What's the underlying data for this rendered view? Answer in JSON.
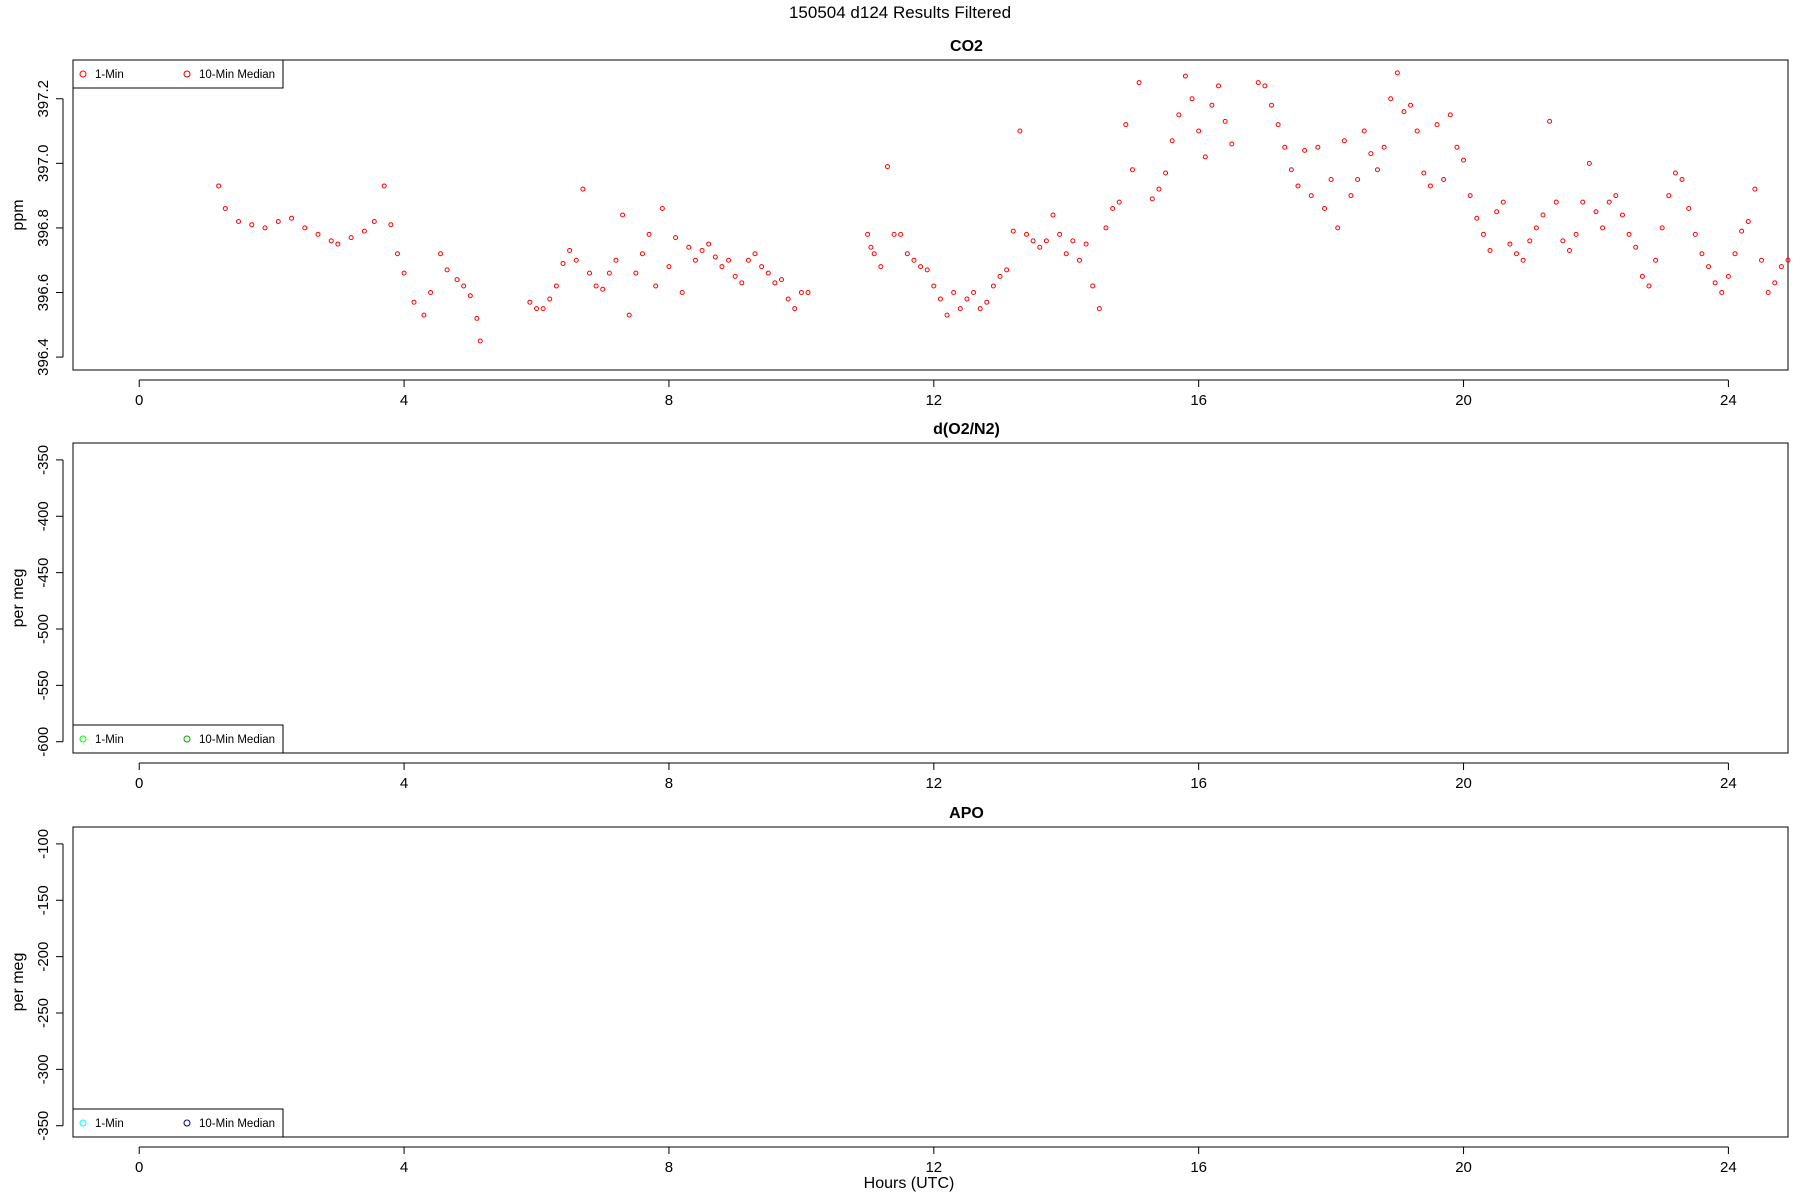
{
  "figure": {
    "title": "150504   d124   Results Filtered",
    "xlabel": "Hours (UTC)"
  },
  "chart_data": [
    {
      "type": "scatter",
      "title": "CO2",
      "xlabel": "",
      "ylabel": "ppm",
      "xlim": [
        -1.0,
        24.9
      ],
      "ylim": [
        396.36,
        397.32
      ],
      "xticks": [
        "0",
        "4",
        "8",
        "12",
        "16",
        "20",
        "24"
      ],
      "xtick_values": [
        0,
        4,
        8,
        12,
        16,
        20,
        24
      ],
      "yticks": [
        "396.4",
        "396.6",
        "396.8",
        "397.0",
        "397.2"
      ],
      "ytick_values": [
        396.4,
        396.6,
        396.8,
        397.0,
        397.2
      ],
      "legend_position": "top-left",
      "series": [
        {
          "name": "1-Min",
          "color": "#ff0000",
          "points": [
            [
              1.2,
              396.93
            ],
            [
              1.3,
              396.86
            ],
            [
              1.5,
              396.82
            ],
            [
              1.7,
              396.81
            ],
            [
              1.9,
              396.8
            ],
            [
              2.1,
              396.82
            ],
            [
              2.3,
              396.83
            ],
            [
              2.5,
              396.8
            ],
            [
              2.7,
              396.78
            ],
            [
              2.9,
              396.76
            ],
            [
              3.0,
              396.75
            ],
            [
              3.2,
              396.77
            ],
            [
              3.4,
              396.79
            ],
            [
              3.55,
              396.82
            ],
            [
              3.7,
              396.93
            ],
            [
              3.8,
              396.81
            ],
            [
              3.9,
              396.72
            ],
            [
              4.0,
              396.66
            ],
            [
              4.15,
              396.57
            ],
            [
              4.3,
              396.53
            ],
            [
              4.4,
              396.6
            ],
            [
              4.55,
              396.72
            ],
            [
              4.65,
              396.67
            ],
            [
              4.8,
              396.64
            ],
            [
              4.9,
              396.62
            ],
            [
              5.0,
              396.59
            ],
            [
              5.1,
              396.52
            ],
            [
              5.15,
              396.45
            ],
            [
              5.9,
              396.57
            ],
            [
              6.0,
              396.55
            ],
            [
              6.1,
              396.55
            ],
            [
              6.2,
              396.58
            ],
            [
              6.3,
              396.62
            ],
            [
              6.4,
              396.69
            ],
            [
              6.5,
              396.73
            ],
            [
              6.6,
              396.7
            ],
            [
              6.7,
              396.92
            ],
            [
              6.8,
              396.66
            ],
            [
              6.9,
              396.62
            ],
            [
              7.0,
              396.61
            ],
            [
              7.1,
              396.66
            ],
            [
              7.2,
              396.7
            ],
            [
              7.3,
              396.84
            ],
            [
              7.4,
              396.53
            ],
            [
              7.5,
              396.66
            ],
            [
              7.6,
              396.72
            ],
            [
              7.7,
              396.78
            ],
            [
              7.8,
              396.62
            ],
            [
              7.9,
              396.86
            ],
            [
              8.0,
              396.68
            ],
            [
              8.1,
              396.77
            ],
            [
              8.2,
              396.6
            ],
            [
              8.3,
              396.74
            ],
            [
              8.4,
              396.7
            ],
            [
              8.5,
              396.73
            ],
            [
              8.6,
              396.75
            ],
            [
              8.7,
              396.71
            ],
            [
              8.8,
              396.68
            ],
            [
              8.9,
              396.7
            ],
            [
              9.0,
              396.65
            ],
            [
              9.1,
              396.63
            ],
            [
              9.2,
              396.7
            ],
            [
              9.3,
              396.72
            ],
            [
              9.4,
              396.68
            ],
            [
              9.5,
              396.66
            ],
            [
              9.6,
              396.63
            ],
            [
              9.7,
              396.64
            ],
            [
              9.8,
              396.58
            ],
            [
              9.9,
              396.55
            ],
            [
              10.0,
              396.6
            ],
            [
              10.1,
              396.6
            ],
            [
              11.0,
              396.78
            ],
            [
              11.05,
              396.74
            ],
            [
              11.1,
              396.72
            ],
            [
              11.2,
              396.68
            ],
            [
              11.3,
              396.99
            ],
            [
              11.4,
              396.78
            ],
            [
              11.5,
              396.78
            ],
            [
              11.6,
              396.72
            ],
            [
              11.7,
              396.7
            ],
            [
              11.8,
              396.68
            ],
            [
              11.9,
              396.67
            ],
            [
              12.0,
              396.62
            ],
            [
              12.1,
              396.58
            ],
            [
              12.2,
              396.53
            ],
            [
              12.3,
              396.6
            ],
            [
              12.4,
              396.55
            ],
            [
              12.5,
              396.58
            ],
            [
              12.6,
              396.6
            ],
            [
              12.7,
              396.55
            ],
            [
              12.8,
              396.57
            ],
            [
              12.9,
              396.62
            ],
            [
              13.0,
              396.65
            ],
            [
              13.1,
              396.67
            ],
            [
              13.2,
              396.79
            ],
            [
              13.3,
              397.1
            ],
            [
              13.4,
              396.78
            ],
            [
              13.5,
              396.76
            ],
            [
              13.6,
              396.74
            ],
            [
              13.7,
              396.76
            ],
            [
              13.8,
              396.84
            ],
            [
              13.9,
              396.78
            ],
            [
              14.0,
              396.72
            ],
            [
              14.1,
              396.76
            ],
            [
              14.2,
              396.7
            ],
            [
              14.3,
              396.75
            ],
            [
              14.4,
              396.62
            ],
            [
              14.5,
              396.55
            ],
            [
              14.6,
              396.8
            ],
            [
              14.7,
              396.86
            ],
            [
              14.8,
              396.88
            ],
            [
              14.9,
              397.12
            ],
            [
              15.0,
              396.98
            ],
            [
              15.1,
              397.25
            ],
            [
              15.3,
              396.89
            ],
            [
              15.4,
              396.92
            ],
            [
              15.5,
              396.97
            ],
            [
              15.6,
              397.07
            ],
            [
              15.7,
              397.15
            ],
            [
              15.8,
              397.27
            ],
            [
              15.9,
              397.2
            ],
            [
              16.0,
              397.1
            ],
            [
              16.1,
              397.02
            ],
            [
              16.2,
              397.18
            ],
            [
              16.3,
              397.24
            ],
            [
              16.4,
              397.13
            ],
            [
              16.5,
              397.06
            ],
            [
              16.9,
              397.25
            ],
            [
              17.0,
              397.24
            ],
            [
              17.1,
              397.18
            ],
            [
              17.2,
              397.12
            ],
            [
              17.3,
              397.05
            ],
            [
              17.4,
              396.98
            ],
            [
              17.5,
              396.93
            ],
            [
              17.6,
              397.04
            ],
            [
              17.7,
              396.9
            ],
            [
              17.8,
              397.05
            ],
            [
              17.9,
              396.86
            ],
            [
              18.0,
              396.95
            ],
            [
              18.1,
              396.8
            ],
            [
              18.2,
              397.07
            ],
            [
              18.3,
              396.9
            ],
            [
              18.4,
              396.95
            ],
            [
              18.5,
              397.1
            ],
            [
              18.6,
              397.03
            ],
            [
              18.7,
              396.98
            ],
            [
              18.8,
              397.05
            ],
            [
              18.9,
              397.2
            ],
            [
              19.0,
              397.28
            ],
            [
              19.1,
              397.16
            ],
            [
              19.2,
              397.18
            ],
            [
              19.3,
              397.1
            ],
            [
              19.4,
              396.97
            ],
            [
              19.5,
              396.93
            ],
            [
              19.6,
              397.12
            ],
            [
              19.7,
              396.95
            ],
            [
              19.8,
              397.15
            ],
            [
              19.9,
              397.05
            ],
            [
              20.0,
              397.01
            ],
            [
              20.1,
              396.9
            ],
            [
              20.2,
              396.83
            ],
            [
              20.3,
              396.78
            ],
            [
              20.4,
              396.73
            ],
            [
              20.5,
              396.85
            ],
            [
              20.6,
              396.88
            ],
            [
              20.7,
              396.75
            ],
            [
              20.8,
              396.72
            ],
            [
              20.9,
              396.7
            ],
            [
              21.0,
              396.76
            ],
            [
              21.1,
              396.8
            ],
            [
              21.2,
              396.84
            ],
            [
              21.3,
              397.13
            ],
            [
              21.4,
              396.88
            ],
            [
              21.5,
              396.76
            ],
            [
              21.6,
              396.73
            ],
            [
              21.7,
              396.78
            ],
            [
              21.8,
              396.88
            ],
            [
              21.9,
              397.0
            ],
            [
              22.0,
              396.85
            ],
            [
              22.1,
              396.8
            ],
            [
              22.2,
              396.88
            ],
            [
              22.3,
              396.9
            ],
            [
              22.4,
              396.84
            ],
            [
              22.5,
              396.78
            ],
            [
              22.6,
              396.74
            ],
            [
              22.7,
              396.65
            ],
            [
              22.8,
              396.62
            ],
            [
              22.9,
              396.7
            ],
            [
              23.0,
              396.8
            ],
            [
              23.1,
              396.9
            ],
            [
              23.2,
              396.97
            ],
            [
              23.3,
              396.95
            ],
            [
              23.4,
              396.86
            ],
            [
              23.5,
              396.78
            ],
            [
              23.6,
              396.72
            ],
            [
              23.7,
              396.68
            ],
            [
              23.8,
              396.63
            ],
            [
              23.9,
              396.6
            ],
            [
              24.0,
              396.65
            ],
            [
              24.1,
              396.72
            ],
            [
              24.2,
              396.79
            ],
            [
              24.3,
              396.82
            ],
            [
              24.4,
              396.92
            ],
            [
              24.5,
              396.7
            ],
            [
              24.6,
              396.6
            ],
            [
              24.7,
              396.63
            ],
            [
              24.8,
              396.68
            ],
            [
              24.9,
              396.7
            ]
          ]
        },
        {
          "name": "10-Min Median",
          "color": "#cc0000",
          "points": []
        }
      ]
    },
    {
      "type": "scatter",
      "title": "d(O2/N2)",
      "xlabel": "",
      "ylabel": "per meg",
      "xlim": [
        -1.0,
        24.9
      ],
      "ylim": [
        -610,
        -335
      ],
      "xticks": [
        "0",
        "4",
        "8",
        "12",
        "16",
        "20",
        "24"
      ],
      "xtick_values": [
        0,
        4,
        8,
        12,
        16,
        20,
        24
      ],
      "yticks": [
        "-350",
        "-400",
        "-450",
        "-500",
        "-550",
        "-600"
      ],
      "ytick_values": [
        -350,
        -400,
        -450,
        -500,
        -550,
        -600
      ],
      "legend_position": "bottom-left",
      "series": [
        {
          "name": "1-Min",
          "color": "#00ff00",
          "points": []
        },
        {
          "name": "10-Min Median",
          "color": "#00a000",
          "points": []
        }
      ]
    },
    {
      "type": "scatter",
      "title": "APO",
      "xlabel": "",
      "ylabel": "per meg",
      "xlim": [
        -1.0,
        24.9
      ],
      "ylim": [
        -360,
        -85
      ],
      "xticks": [
        "0",
        "4",
        "8",
        "12",
        "16",
        "20",
        "24"
      ],
      "xtick_values": [
        0,
        4,
        8,
        12,
        16,
        20,
        24
      ],
      "yticks": [
        "-100",
        "-150",
        "-200",
        "-250",
        "-300",
        "-350"
      ],
      "ytick_values": [
        -100,
        -150,
        -200,
        -250,
        -300,
        -350
      ],
      "legend_position": "bottom-left",
      "series": [
        {
          "name": "1-Min",
          "color": "#00ffff",
          "points": []
        },
        {
          "name": "10-Min Median",
          "color": "#000080",
          "points": []
        }
      ]
    }
  ]
}
